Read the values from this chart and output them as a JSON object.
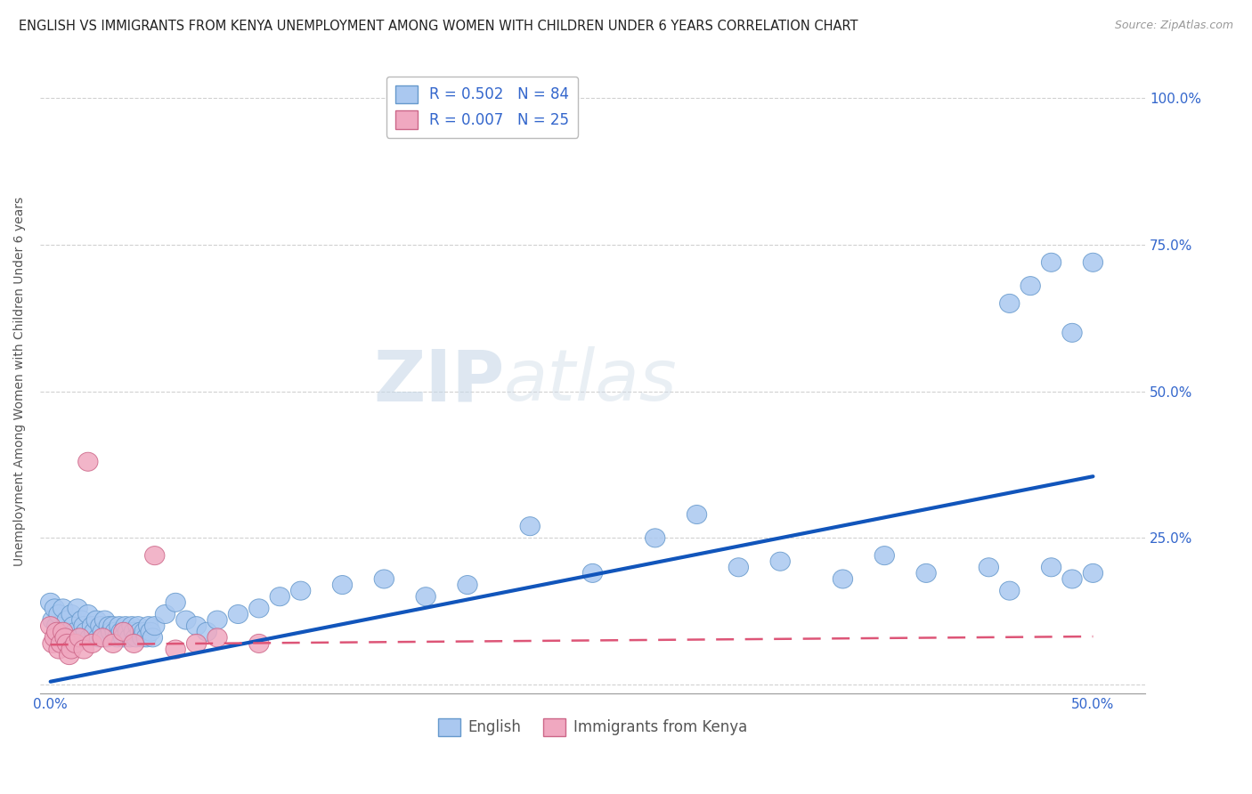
{
  "title": "ENGLISH VS IMMIGRANTS FROM KENYA UNEMPLOYMENT AMONG WOMEN WITH CHILDREN UNDER 6 YEARS CORRELATION CHART",
  "source": "Source: ZipAtlas.com",
  "ylabel": "Unemployment Among Women with Children Under 6 years",
  "xlim": [
    -0.005,
    0.525
  ],
  "ylim": [
    -0.015,
    1.05
  ],
  "legend_english_label": "R = 0.502   N = 84",
  "legend_kenya_label": "R = 0.007   N = 25",
  "english_color": "#aac8f0",
  "kenya_color": "#f0a8c0",
  "english_edge_color": "#6699cc",
  "kenya_edge_color": "#cc6688",
  "english_line_color": "#1155bb",
  "kenya_line_color": "#dd5577",
  "watermark_zip": "ZIP",
  "watermark_atlas": "atlas",
  "english_trend_x": [
    0.0,
    0.5
  ],
  "english_trend_y": [
    0.005,
    0.355
  ],
  "kenya_trend_x": [
    0.0,
    0.5
  ],
  "kenya_trend_y": [
    0.068,
    0.082
  ],
  "english_scatter_x": [
    0.0,
    0.001,
    0.002,
    0.003,
    0.004,
    0.005,
    0.006,
    0.007,
    0.008,
    0.009,
    0.01,
    0.011,
    0.012,
    0.013,
    0.014,
    0.015,
    0.016,
    0.017,
    0.018,
    0.019,
    0.02,
    0.021,
    0.022,
    0.023,
    0.024,
    0.025,
    0.026,
    0.027,
    0.028,
    0.029,
    0.03,
    0.031,
    0.032,
    0.033,
    0.034,
    0.035,
    0.036,
    0.037,
    0.038,
    0.039,
    0.04,
    0.041,
    0.042,
    0.043,
    0.044,
    0.045,
    0.046,
    0.047,
    0.048,
    0.049,
    0.05,
    0.055,
    0.06,
    0.065,
    0.07,
    0.075,
    0.08,
    0.09,
    0.1,
    0.11,
    0.12,
    0.14,
    0.16,
    0.18,
    0.2,
    0.23,
    0.26,
    0.29,
    0.31,
    0.33,
    0.35,
    0.38,
    0.4,
    0.42,
    0.45,
    0.46,
    0.47,
    0.48,
    0.49,
    0.5,
    0.5,
    0.49,
    0.48,
    0.46
  ],
  "english_scatter_y": [
    0.14,
    0.11,
    0.13,
    0.1,
    0.12,
    0.08,
    0.13,
    0.09,
    0.11,
    0.07,
    0.12,
    0.1,
    0.09,
    0.13,
    0.08,
    0.11,
    0.1,
    0.09,
    0.12,
    0.08,
    0.1,
    0.09,
    0.11,
    0.08,
    0.1,
    0.09,
    0.11,
    0.08,
    0.1,
    0.09,
    0.1,
    0.09,
    0.08,
    0.1,
    0.09,
    0.08,
    0.1,
    0.09,
    0.08,
    0.1,
    0.09,
    0.08,
    0.1,
    0.09,
    0.08,
    0.09,
    0.08,
    0.1,
    0.09,
    0.08,
    0.1,
    0.12,
    0.14,
    0.11,
    0.1,
    0.09,
    0.11,
    0.12,
    0.13,
    0.15,
    0.16,
    0.17,
    0.18,
    0.15,
    0.17,
    0.27,
    0.19,
    0.25,
    0.29,
    0.2,
    0.21,
    0.18,
    0.22,
    0.19,
    0.2,
    0.65,
    0.68,
    0.2,
    0.18,
    0.19,
    0.72,
    0.6,
    0.72,
    0.16
  ],
  "kenya_scatter_x": [
    0.0,
    0.001,
    0.002,
    0.003,
    0.004,
    0.005,
    0.006,
    0.007,
    0.008,
    0.009,
    0.01,
    0.012,
    0.014,
    0.016,
    0.018,
    0.02,
    0.025,
    0.03,
    0.035,
    0.04,
    0.05,
    0.06,
    0.07,
    0.08,
    0.1
  ],
  "kenya_scatter_y": [
    0.1,
    0.07,
    0.08,
    0.09,
    0.06,
    0.07,
    0.09,
    0.08,
    0.07,
    0.05,
    0.06,
    0.07,
    0.08,
    0.06,
    0.38,
    0.07,
    0.08,
    0.07,
    0.09,
    0.07,
    0.22,
    0.06,
    0.07,
    0.08,
    0.07
  ],
  "title_fontsize": 10.5,
  "source_fontsize": 9,
  "axis_label_fontsize": 10,
  "tick_fontsize": 11,
  "legend_fontsize": 12
}
